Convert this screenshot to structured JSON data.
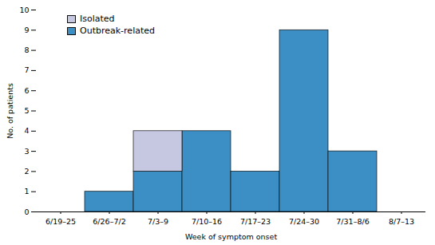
{
  "chart_data": {
    "type": "bar",
    "stacked": true,
    "xlabel": "Week of symptom onset",
    "ylabel": "No. of patients",
    "categories": [
      "6/19–25",
      "6/26–7/2",
      "7/3–9",
      "7/10–16",
      "7/17–23",
      "7/24–30",
      "7/31–8/6",
      "8/7–13"
    ],
    "series": [
      {
        "name": "Outbreak-related",
        "color": "#3B8FC4",
        "values": [
          0,
          1,
          2,
          4,
          2,
          9,
          3,
          0
        ]
      },
      {
        "name": "Isolated",
        "color": "#C5C8E0",
        "values": [
          0,
          0,
          2,
          0,
          0,
          0,
          0,
          0
        ]
      }
    ],
    "ylim": [
      0,
      10
    ],
    "yticks": [
      0,
      1,
      2,
      3,
      4,
      5,
      6,
      7,
      8,
      9,
      10
    ],
    "grid": false,
    "legend": "upper left"
  }
}
